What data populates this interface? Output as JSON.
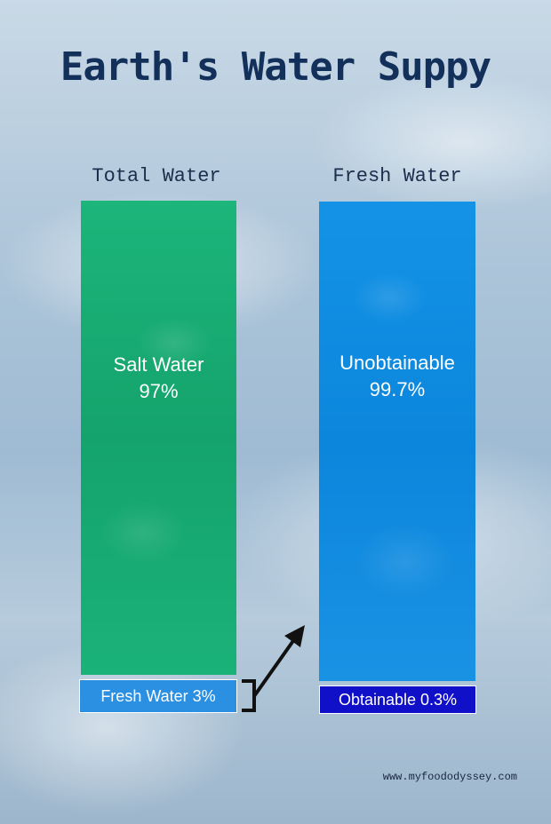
{
  "title": "Earth's Water Suppy",
  "footer_url": "www.myfoododyssey.com",
  "chart_data": [
    {
      "type": "bar",
      "title": "Total Water",
      "segments": [
        {
          "label": "Salt Water",
          "value_label": "97%",
          "value": 97,
          "color": "#18ad73"
        },
        {
          "label": "Fresh Water 3%",
          "value": 3,
          "color": "#2b8fe2"
        }
      ]
    },
    {
      "type": "bar",
      "title": "Fresh Water",
      "segments": [
        {
          "label": "Unobtainable",
          "value_label": "99.7%",
          "value": 99.7,
          "color": "#0f8ce0"
        },
        {
          "label": "Obtainable 0.3%",
          "value": 0.3,
          "color": "#1010c8"
        }
      ]
    }
  ],
  "colors": {
    "title": "#12305a",
    "background": "#aac3d8",
    "arrow": "#111111"
  },
  "icons": {
    "arrow": "arrow-up-right-icon",
    "bracket": "bracket-icon"
  }
}
